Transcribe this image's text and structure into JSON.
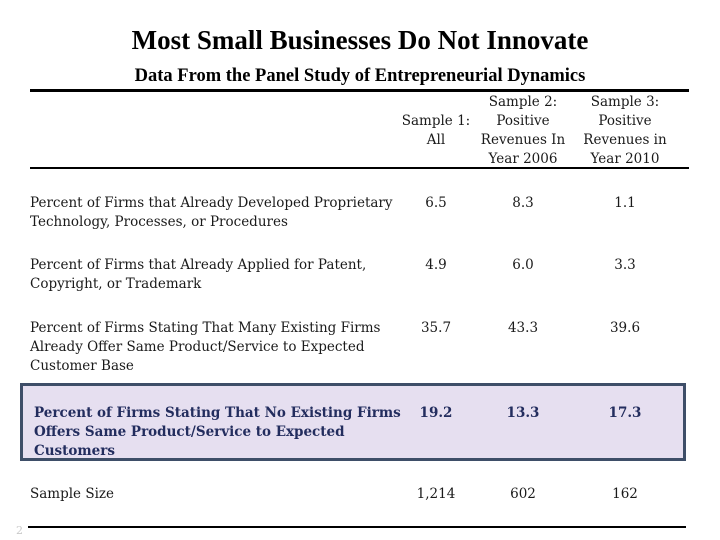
{
  "slide": {
    "title": "Most Small Businesses Do Not Innovate",
    "subtitle": "Data From the Panel Study of Entrepreneurial Dynamics",
    "page_number": "2"
  },
  "table": {
    "columns": [
      {
        "label": "\nSample 1:\nAll"
      },
      {
        "label": "Sample 2:\nPositive\nRevenues In\nYear 2006"
      },
      {
        "label": "Sample 3:\nPositive\nRevenues in\nYear 2010"
      }
    ],
    "rows": [
      {
        "label": "Percent of Firms that Already Developed Proprietary\nTechnology, Processes, or Procedures",
        "values": [
          "6.5",
          "8.3",
          "1.1"
        ],
        "highlighted": false
      },
      {
        "label": "Percent of Firms that Already Applied for Patent,\nCopyright, or Trademark",
        "values": [
          "4.9",
          "6.0",
          "3.3"
        ],
        "highlighted": false
      },
      {
        "label": "Percent of Firms Stating That Many Existing Firms\nAlready Offer Same Product/Service to Expected\nCustomer Base",
        "values": [
          "35.7",
          "43.3",
          "39.6"
        ],
        "highlighted": false
      },
      {
        "label": "Percent of Firms Stating That No Existing Firms\nOffers Same Product/Service to Expected\nCustomers",
        "values": [
          "19.2",
          "13.3",
          "17.3"
        ],
        "highlighted": true
      },
      {
        "label": "Sample Size",
        "values": [
          "1,214",
          "602",
          "162"
        ],
        "highlighted": false
      }
    ]
  },
  "colors": {
    "highlight_bg": "#e6dff0",
    "highlight_border": "#3e4e68",
    "highlight_text": "#232d5e",
    "text": "#1a1a1a",
    "rule": "#000000"
  }
}
